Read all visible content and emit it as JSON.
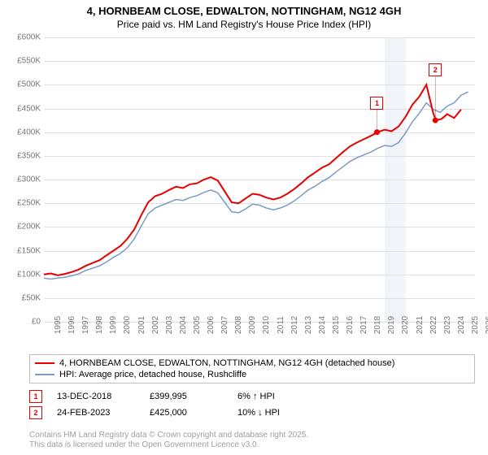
{
  "title": "4, HORNBEAM CLOSE, EDWALTON, NOTTINGHAM, NG12 4GH",
  "subtitle": "Price paid vs. HM Land Registry's House Price Index (HPI)",
  "chart": {
    "type": "line",
    "background_color": "#ffffff",
    "grid_color": "#e0e0e0",
    "label_color": "#757575",
    "label_fontsize": 10,
    "xlim": [
      1995,
      2026
    ],
    "ylim": [
      0,
      600
    ],
    "ytick_step": 50,
    "y_prefix": "£",
    "y_suffix": "K",
    "x_ticks": [
      1995,
      1996,
      1997,
      1998,
      1999,
      2000,
      2001,
      2002,
      2003,
      2004,
      2005,
      2006,
      2007,
      2008,
      2009,
      2010,
      2011,
      2012,
      2013,
      2014,
      2015,
      2016,
      2017,
      2018,
      2019,
      2020,
      2021,
      2022,
      2023,
      2024,
      2025,
      2026
    ],
    "series": [
      {
        "name": "4, HORNBEAM CLOSE, EDWALTON, NOTTINGHAM, NG12 4GH (detached house)",
        "color": "#e60000",
        "line_width": 2,
        "points": [
          [
            1995,
            100
          ],
          [
            1995.5,
            102
          ],
          [
            1996,
            98
          ],
          [
            1996.5,
            101
          ],
          [
            1997,
            105
          ],
          [
            1997.5,
            110
          ],
          [
            1998,
            118
          ],
          [
            1998.5,
            124
          ],
          [
            1999,
            130
          ],
          [
            1999.5,
            140
          ],
          [
            2000,
            150
          ],
          [
            2000.5,
            160
          ],
          [
            2001,
            175
          ],
          [
            2001.5,
            195
          ],
          [
            2002,
            225
          ],
          [
            2002.5,
            252
          ],
          [
            2003,
            265
          ],
          [
            2003.5,
            270
          ],
          [
            2004,
            278
          ],
          [
            2004.5,
            285
          ],
          [
            2005,
            282
          ],
          [
            2005.5,
            290
          ],
          [
            2006,
            292
          ],
          [
            2006.5,
            300
          ],
          [
            2007,
            305
          ],
          [
            2007.5,
            298
          ],
          [
            2008,
            275
          ],
          [
            2008.5,
            252
          ],
          [
            2009,
            250
          ],
          [
            2009.5,
            260
          ],
          [
            2010,
            270
          ],
          [
            2010.5,
            268
          ],
          [
            2011,
            262
          ],
          [
            2011.5,
            258
          ],
          [
            2012,
            262
          ],
          [
            2012.5,
            270
          ],
          [
            2013,
            280
          ],
          [
            2013.5,
            292
          ],
          [
            2014,
            305
          ],
          [
            2014.5,
            315
          ],
          [
            2015,
            325
          ],
          [
            2015.5,
            332
          ],
          [
            2016,
            345
          ],
          [
            2016.5,
            358
          ],
          [
            2017,
            370
          ],
          [
            2017.5,
            378
          ],
          [
            2018,
            385
          ],
          [
            2018.5,
            392
          ],
          [
            2019,
            400
          ],
          [
            2019.5,
            405
          ],
          [
            2020,
            402
          ],
          [
            2020.5,
            412
          ],
          [
            2021,
            432
          ],
          [
            2021.5,
            458
          ],
          [
            2022,
            475
          ],
          [
            2022.5,
            500
          ],
          [
            2023,
            440
          ],
          [
            2023.2,
            425
          ],
          [
            2023.6,
            428
          ],
          [
            2024,
            438
          ],
          [
            2024.5,
            430
          ],
          [
            2025,
            448
          ]
        ]
      },
      {
        "name": "HPI: Average price, detached house, Rushcliffe",
        "color": "#7b9bc4",
        "line_width": 1.5,
        "points": [
          [
            1995,
            92
          ],
          [
            1995.5,
            90
          ],
          [
            1996,
            92
          ],
          [
            1996.5,
            94
          ],
          [
            1997,
            97
          ],
          [
            1997.5,
            101
          ],
          [
            1998,
            108
          ],
          [
            1998.5,
            113
          ],
          [
            1999,
            118
          ],
          [
            1999.5,
            126
          ],
          [
            2000,
            136
          ],
          [
            2000.5,
            144
          ],
          [
            2001,
            156
          ],
          [
            2001.5,
            175
          ],
          [
            2002,
            202
          ],
          [
            2002.5,
            228
          ],
          [
            2003,
            240
          ],
          [
            2003.5,
            246
          ],
          [
            2004,
            252
          ],
          [
            2004.5,
            258
          ],
          [
            2005,
            256
          ],
          [
            2005.5,
            262
          ],
          [
            2006,
            266
          ],
          [
            2006.5,
            273
          ],
          [
            2007,
            278
          ],
          [
            2007.5,
            272
          ],
          [
            2008,
            252
          ],
          [
            2008.5,
            232
          ],
          [
            2009,
            230
          ],
          [
            2009.5,
            238
          ],
          [
            2010,
            248
          ],
          [
            2010.5,
            246
          ],
          [
            2011,
            240
          ],
          [
            2011.5,
            236
          ],
          [
            2012,
            240
          ],
          [
            2012.5,
            246
          ],
          [
            2013,
            255
          ],
          [
            2013.5,
            266
          ],
          [
            2014,
            278
          ],
          [
            2014.5,
            286
          ],
          [
            2015,
            296
          ],
          [
            2015.5,
            304
          ],
          [
            2016,
            316
          ],
          [
            2016.5,
            327
          ],
          [
            2017,
            338
          ],
          [
            2017.5,
            346
          ],
          [
            2018,
            352
          ],
          [
            2018.5,
            358
          ],
          [
            2019,
            366
          ],
          [
            2019.5,
            372
          ],
          [
            2020,
            370
          ],
          [
            2020.5,
            378
          ],
          [
            2021,
            398
          ],
          [
            2021.5,
            422
          ],
          [
            2022,
            440
          ],
          [
            2022.5,
            462
          ],
          [
            2023,
            448
          ],
          [
            2023.5,
            442
          ],
          [
            2024,
            455
          ],
          [
            2024.5,
            462
          ],
          [
            2025,
            478
          ],
          [
            2025.5,
            485
          ]
        ]
      }
    ],
    "shaded_regions": [
      {
        "from": 2019.5,
        "to": 2021,
        "color": "#eef3f8"
      }
    ],
    "sale_markers": [
      {
        "label": "1",
        "x": 2018.95,
        "y": 400,
        "box_y_offset": -44
      },
      {
        "label": "2",
        "x": 2023.15,
        "y": 425,
        "box_y_offset": -70
      }
    ],
    "sale_dot_color": "#e60000",
    "sale_dot_radius": 3.5
  },
  "legend": {
    "border_color": "#bdbdbd",
    "items": [
      {
        "color": "#e60000",
        "width": 2,
        "label": "4, HORNBEAM CLOSE, EDWALTON, NOTTINGHAM, NG12 4GH (detached house)"
      },
      {
        "color": "#7b9bc4",
        "width": 1.5,
        "label": "HPI: Average price, detached house, Rushcliffe"
      }
    ]
  },
  "events": [
    {
      "num": "1",
      "date": "13-DEC-2018",
      "price": "£399,995",
      "delta": "6% ↑ HPI"
    },
    {
      "num": "2",
      "date": "24-FEB-2023",
      "price": "£425,000",
      "delta": "10% ↓ HPI"
    }
  ],
  "footer_line1": "Contains HM Land Registry data © Crown copyright and database right 2025.",
  "footer_line2": "This data is licensed under the Open Government Licence v3.0."
}
